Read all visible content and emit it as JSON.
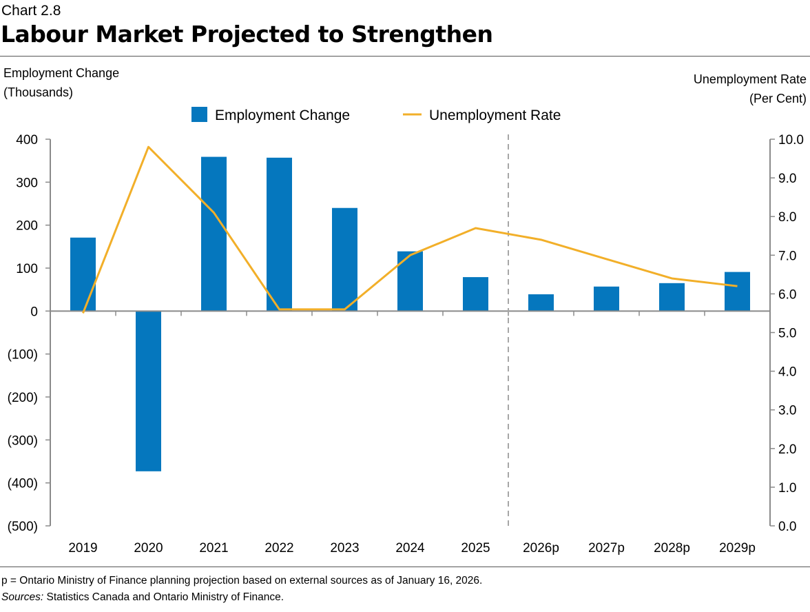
{
  "header": {
    "chart_number": "Chart 2.8",
    "title": "Labour Market Projected to Strengthen"
  },
  "footer": {
    "note": "p = Ontario Ministry of Finance planning projection based on external sources as of January 16, 2026.",
    "sources_label": "Sources:",
    "sources_text": " Statistics Canada and Ontario Ministry of Finance."
  },
  "chart_data": {
    "type": "bar+line",
    "title": "Labour Market Projected to Strengthen",
    "categories": [
      "2019",
      "2020",
      "2021",
      "2022",
      "2023",
      "2024",
      "2025",
      "2026p",
      "2027p",
      "2028p",
      "2029p"
    ],
    "series": [
      {
        "name": "Employment Change",
        "type": "bar",
        "axis": "left",
        "color": "#0577BE",
        "values": [
          171,
          -373,
          359,
          357,
          240,
          139,
          79,
          39,
          57,
          65,
          91
        ]
      },
      {
        "name": "Unemployment Rate",
        "type": "line",
        "axis": "right",
        "color": "#F2AF29",
        "values": [
          5.5,
          9.8,
          8.1,
          5.6,
          5.6,
          7.0,
          7.7,
          7.4,
          6.9,
          6.4,
          6.2
        ]
      }
    ],
    "ylabel_left": [
      "Employment Change",
      "(Thousands)"
    ],
    "ylabel_right": [
      "Unemployment Rate",
      "(Per Cent)"
    ],
    "ylim_left": [
      -500,
      400
    ],
    "yticks_left": [
      "400",
      "300",
      "200",
      "100",
      "0",
      "(100)",
      "(200)",
      "(300)",
      "(400)",
      "(500)"
    ],
    "ylim_right": [
      0,
      10
    ],
    "yticks_right": [
      "10.0",
      "9.0",
      "8.0",
      "7.0",
      "6.0",
      "5.0",
      "4.0",
      "3.0",
      "2.0",
      "1.0",
      "0.0"
    ],
    "projection_divider_after": "2025",
    "legend": "top-center",
    "grid": false
  }
}
